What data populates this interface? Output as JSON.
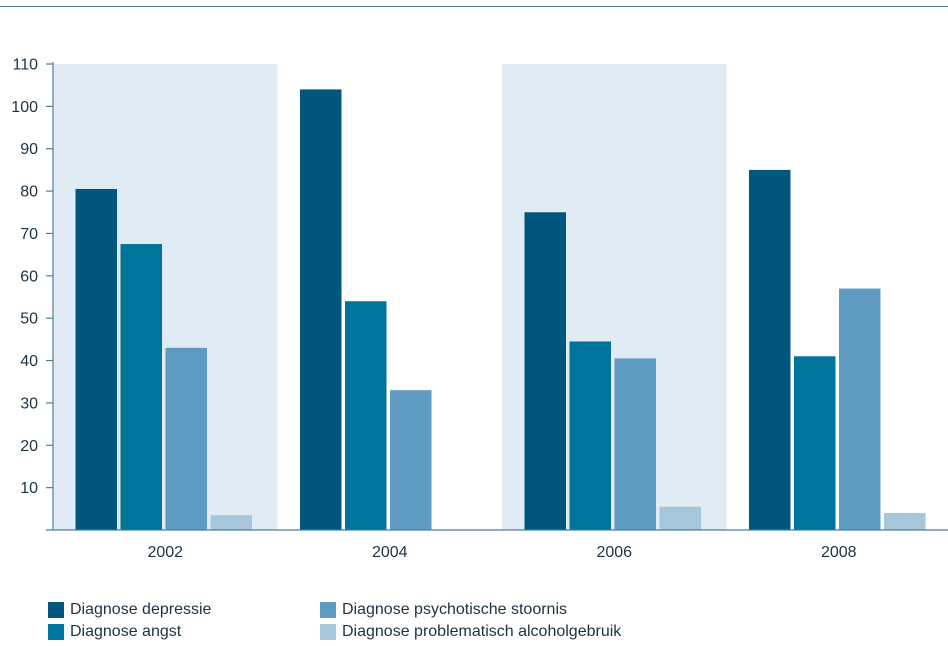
{
  "chart_data": {
    "type": "bar",
    "title": "",
    "xlabel": "",
    "ylabel": "",
    "categories": [
      "2002",
      "2004",
      "2006",
      "2008"
    ],
    "ylim": [
      0,
      110
    ],
    "yticks": [
      10,
      20,
      30,
      40,
      50,
      60,
      70,
      80,
      90,
      100,
      110
    ],
    "grid": false,
    "legend_position": "bottom-left",
    "category_band_colors": [
      "#e1ebf3",
      "#ffffff",
      "#e1ebf3",
      "#ffffff"
    ],
    "series": [
      {
        "name": "Diagnose depressie",
        "color": "#00567d",
        "values": [
          80.5,
          104,
          75,
          85
        ]
      },
      {
        "name": "Diagnose angst",
        "color": "#00749a",
        "values": [
          67.5,
          54,
          44.5,
          41
        ]
      },
      {
        "name": "Diagnose psychotische stoornis",
        "color": "#5f9ac0",
        "values": [
          43,
          33,
          40.5,
          57
        ]
      },
      {
        "name": "Diagnose problematisch alcoholgebruik",
        "color": "#a6c6dc",
        "values": [
          3.5,
          null,
          5.5,
          4
        ]
      }
    ]
  }
}
